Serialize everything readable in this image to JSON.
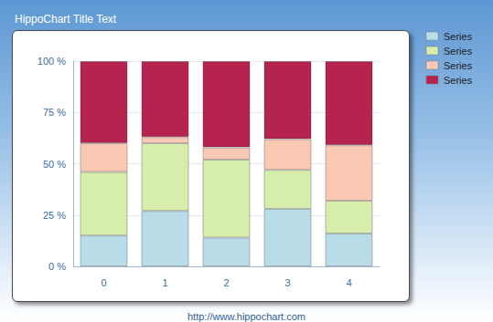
{
  "chart_data": {
    "type": "bar",
    "title": "HippoChart Title Text",
    "caption": "http://www.hippochart.com",
    "categories": [
      "0",
      "1",
      "2",
      "3",
      "4"
    ],
    "series": [
      {
        "name": "Series",
        "color": "#b9dde8",
        "values": [
          15,
          27,
          14,
          28,
          16
        ]
      },
      {
        "name": "Series",
        "color": "#d6edac",
        "values": [
          31,
          33,
          38,
          19,
          16
        ]
      },
      {
        "name": "Series",
        "color": "#f9c9b4",
        "values": [
          14,
          3,
          6,
          15,
          27
        ]
      },
      {
        "name": "Series",
        "color": "#b5234f",
        "values": [
          40,
          37,
          42,
          38,
          41
        ]
      }
    ],
    "ylim": [
      0,
      100
    ],
    "yticks": [
      {
        "value": 0,
        "label": "0 %"
      },
      {
        "value": 25,
        "label": "25 %"
      },
      {
        "value": 50,
        "label": "50 %"
      },
      {
        "value": 75,
        "label": "75 %"
      },
      {
        "value": 100,
        "label": "100 %"
      }
    ],
    "grid": true,
    "stacked": true,
    "legend": "top-right"
  }
}
